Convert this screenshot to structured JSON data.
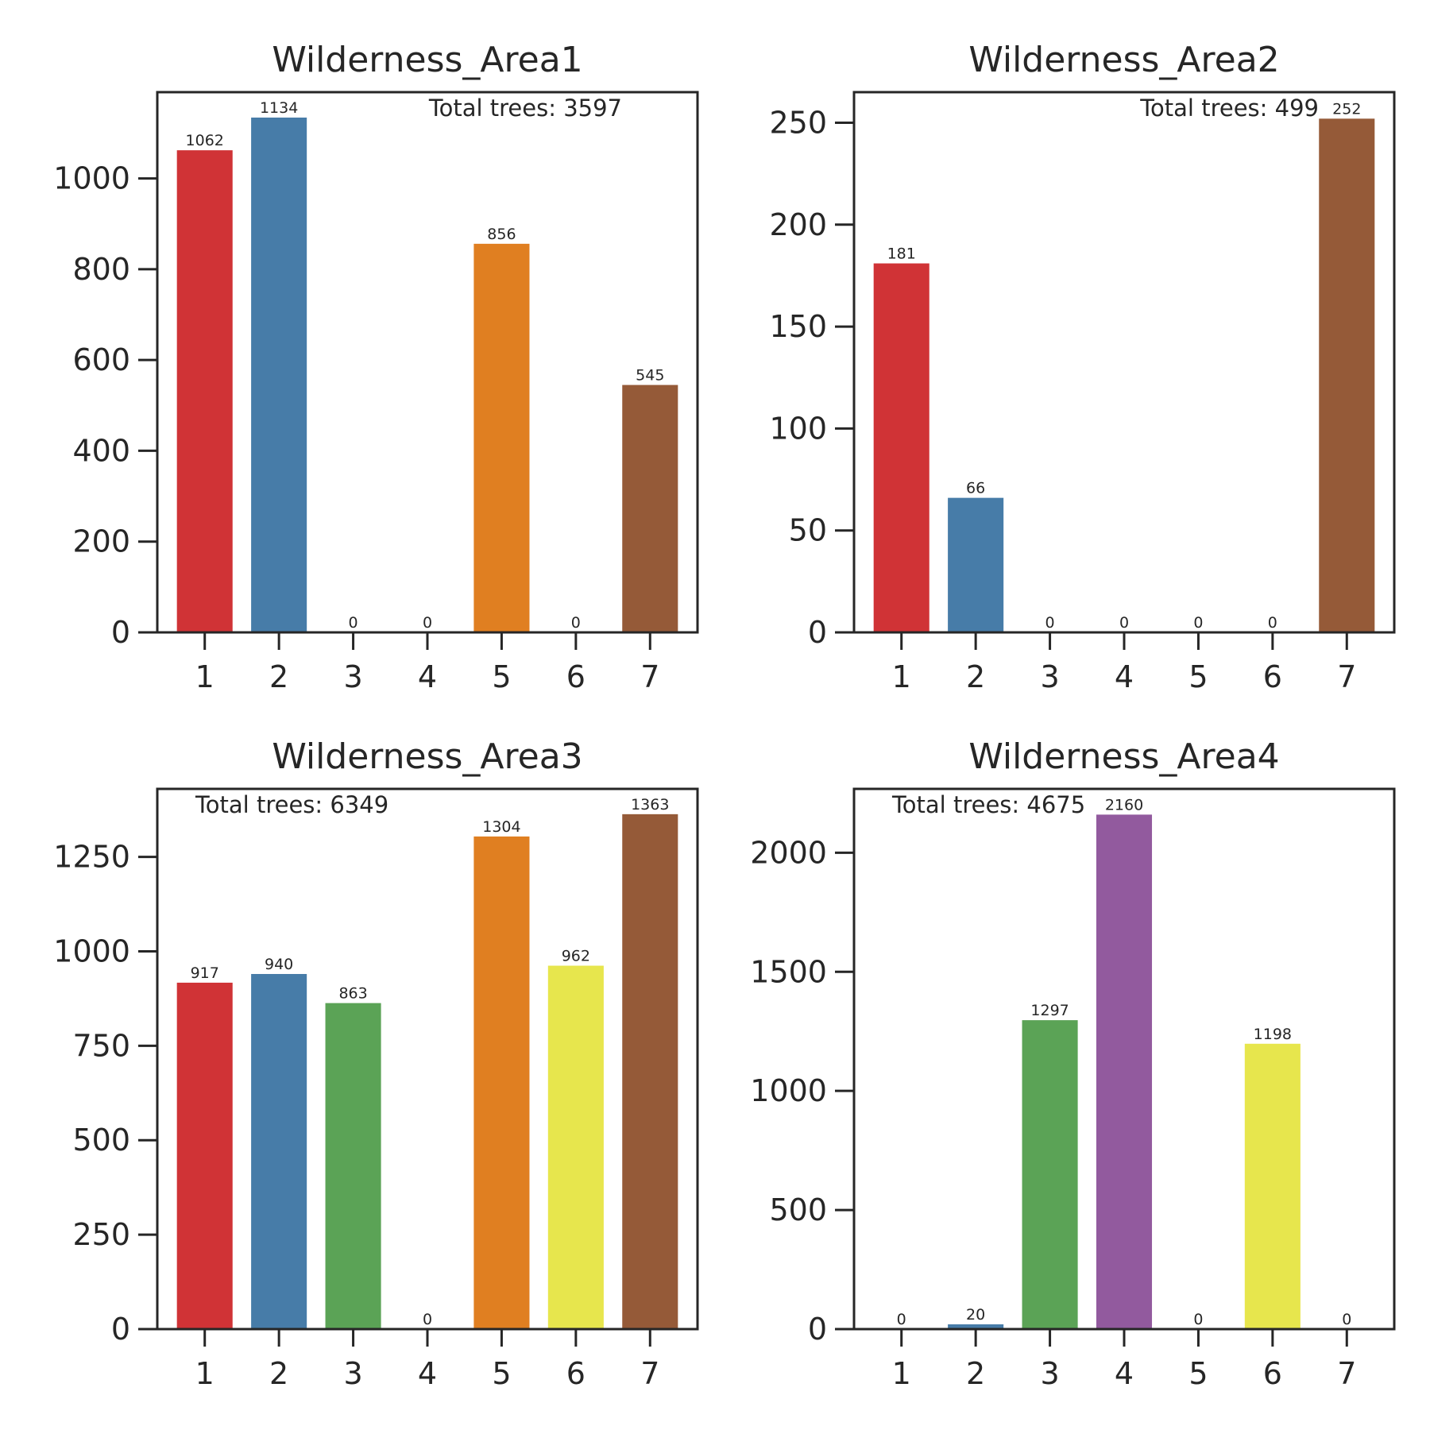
{
  "chart_data": [
    {
      "type": "bar",
      "title": "Wilderness_Area1",
      "categories": [
        "1",
        "2",
        "3",
        "4",
        "5",
        "6",
        "7"
      ],
      "values": [
        1062,
        1134,
        0,
        0,
        856,
        0,
        545
      ],
      "value_labels": [
        "1062",
        "1134",
        "0",
        "0",
        "856",
        "0",
        "545"
      ],
      "annotation": "Total trees: 3597",
      "annotation_placement": "top-right",
      "ylim": [
        0,
        1190
      ],
      "yticks": [
        0,
        200,
        400,
        600,
        800,
        1000
      ],
      "ytick_labels": [
        "0",
        "200",
        "400",
        "600",
        "800",
        "1000"
      ],
      "grid": false
    },
    {
      "type": "bar",
      "title": "Wilderness_Area2",
      "categories": [
        "1",
        "2",
        "3",
        "4",
        "5",
        "6",
        "7"
      ],
      "values": [
        181,
        66,
        0,
        0,
        0,
        0,
        252
      ],
      "value_labels": [
        "181",
        "66",
        "0",
        "0",
        "0",
        "0",
        "252"
      ],
      "annotation": "Total trees: 499",
      "annotation_placement": "top-right",
      "ylim": [
        0,
        265
      ],
      "yticks": [
        0,
        50,
        100,
        150,
        200,
        250
      ],
      "ytick_labels": [
        "0",
        "50",
        "100",
        "150",
        "200",
        "250"
      ],
      "grid": false
    },
    {
      "type": "bar",
      "title": "Wilderness_Area3",
      "categories": [
        "1",
        "2",
        "3",
        "4",
        "5",
        "6",
        "7"
      ],
      "values": [
        917,
        940,
        863,
        0,
        1304,
        962,
        1363
      ],
      "value_labels": [
        "917",
        "940",
        "863",
        "0",
        "1304",
        "962",
        "1363"
      ],
      "annotation": "Total trees: 6349",
      "annotation_placement": "top-left",
      "ylim": [
        0,
        1430
      ],
      "yticks": [
        0,
        250,
        500,
        750,
        1000,
        1250
      ],
      "ytick_labels": [
        "0",
        "250",
        "500",
        "750",
        "1000",
        "1250"
      ],
      "grid": false
    },
    {
      "type": "bar",
      "title": "Wilderness_Area4",
      "categories": [
        "1",
        "2",
        "3",
        "4",
        "5",
        "6",
        "7"
      ],
      "values": [
        0,
        20,
        1297,
        2160,
        0,
        1198,
        0
      ],
      "value_labels": [
        "0",
        "20",
        "1297",
        "2160",
        "0",
        "1198",
        "0"
      ],
      "annotation": "Total trees: 4675",
      "annotation_placement": "top-left",
      "ylim": [
        0,
        2268
      ],
      "yticks": [
        0,
        500,
        1000,
        1500,
        2000
      ],
      "ytick_labels": [
        "0",
        "500",
        "1000",
        "1500",
        "2000"
      ],
      "grid": false
    }
  ],
  "bar_colors": [
    "#d03336",
    "#477ca8",
    "#5ba356",
    "#925a9e",
    "#e07f21",
    "#e7e64d",
    "#955a38"
  ]
}
